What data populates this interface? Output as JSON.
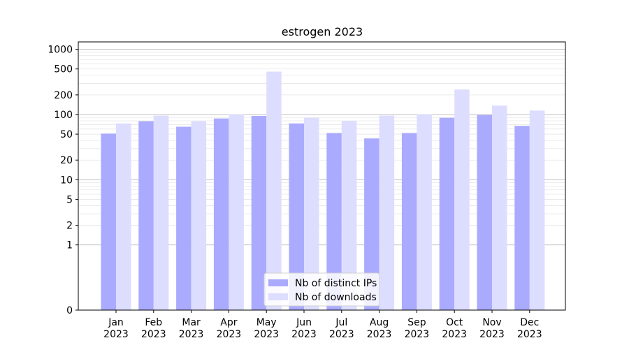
{
  "chart_data": {
    "type": "bar",
    "title": "estrogen 2023",
    "xlabel": "",
    "ylabel": "",
    "yscale": "symlog",
    "ylim": [
      0,
      1300
    ],
    "yticks": [
      0,
      1,
      2,
      5,
      10,
      20,
      50,
      100,
      200,
      500,
      1000
    ],
    "grid": true,
    "legend_position": "lower center",
    "categories": [
      [
        "Jan",
        "2023"
      ],
      [
        "Feb",
        "2023"
      ],
      [
        "Mar",
        "2023"
      ],
      [
        "Apr",
        "2023"
      ],
      [
        "May",
        "2023"
      ],
      [
        "Jun",
        "2023"
      ],
      [
        "Jul",
        "2023"
      ],
      [
        "Aug",
        "2023"
      ],
      [
        "Sep",
        "2023"
      ],
      [
        "Oct",
        "2023"
      ],
      [
        "Nov",
        "2023"
      ],
      [
        "Dec",
        "2023"
      ]
    ],
    "series": [
      {
        "name": "Nb of distinct IPs",
        "color": "#aaaaff",
        "values": [
          51,
          79,
          65,
          87,
          95,
          73,
          52,
          43,
          52,
          89,
          98,
          67
        ]
      },
      {
        "name": "Nb of downloads",
        "color": "#ddddff",
        "values": [
          73,
          96,
          79,
          101,
          455,
          89,
          80,
          96,
          101,
          242,
          137,
          115
        ]
      }
    ]
  }
}
